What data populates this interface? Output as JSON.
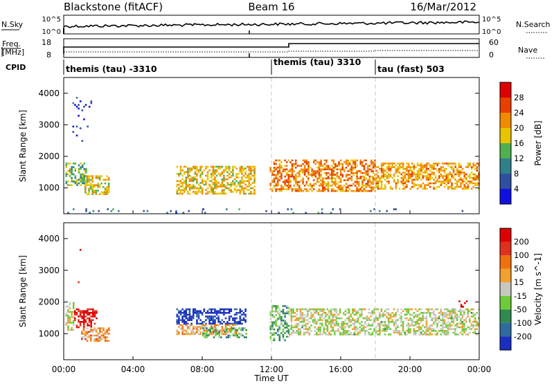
{
  "header": {
    "station": "Blackstone (fitACF)",
    "beam": "Beam 16",
    "date": "16/Mar/2012"
  },
  "noise_panel": {
    "left_label": "N.Sky",
    "left_top": "10^5",
    "left_bottom": "10^0",
    "right_label": "N.Search",
    "right_top": "10^5",
    "right_bottom": "10^0"
  },
  "freq_panel": {
    "left_label_1": "Freq.",
    "left_label_2": "[MHz]",
    "left_top": "18",
    "left_bottom": "8",
    "right_label": "Nave",
    "right_top": "60",
    "right_bottom": "0"
  },
  "cpid": {
    "label": "CPID",
    "segments": [
      {
        "start_hour": 0,
        "text": "themis (tau) -3310"
      },
      {
        "start_hour": 12,
        "text": "themis (tau) 3310"
      },
      {
        "start_hour": 18,
        "text": "tau (fast) 503"
      }
    ]
  },
  "time_axis": {
    "label": "Time UT",
    "ticks": [
      "00:00",
      "04:00",
      "08:00",
      "12:00",
      "16:00",
      "20:00",
      "00:00"
    ],
    "range_hours": [
      0,
      24
    ]
  },
  "chart_data": [
    {
      "type": "heatmap",
      "parameter": "Power",
      "ylabel": "Slant Range [km]",
      "yticks": [
        1000,
        2000,
        3000,
        4000
      ],
      "ylim": [
        180,
        4500
      ],
      "colorbar_label": "Power [dB]",
      "colorbar_ticks": [
        "4",
        "8",
        "12",
        "16",
        "20",
        "24",
        "28"
      ],
      "colors": [
        "#1010e0",
        "#2f4fa0",
        "#30808a",
        "#50b050",
        "#e8c400",
        "#f08a00",
        "#e84000",
        "#dd0000"
      ],
      "blobs": [
        {
          "t0": 0.1,
          "t1": 1.3,
          "r0": 1100,
          "r1": 1800,
          "level": 0.45
        },
        {
          "t0": 1.2,
          "t1": 2.6,
          "r0": 800,
          "r1": 1400,
          "level": 0.55
        },
        {
          "t0": 0.5,
          "t1": 1.6,
          "r0": 2500,
          "r1": 4000,
          "level": 0.15,
          "sparse": true
        },
        {
          "t0": 6.5,
          "t1": 11.0,
          "r0": 800,
          "r1": 1700,
          "level": 0.6
        },
        {
          "t0": 11.9,
          "t1": 18.0,
          "r0": 900,
          "r1": 1900,
          "level": 0.7
        },
        {
          "t0": 18.0,
          "t1": 24.0,
          "r0": 1000,
          "r1": 1800,
          "level": 0.65
        },
        {
          "t0": 0.0,
          "t1": 24.0,
          "r0": 200,
          "r1": 350,
          "level": 0.25,
          "sparse": true
        }
      ]
    },
    {
      "type": "heatmap",
      "parameter": "Velocity",
      "ylabel": "Slant Range [km]",
      "yticks": [
        1000,
        2000,
        3000,
        4000
      ],
      "ylim": [
        180,
        4500
      ],
      "colorbar_label": "Velocity [m s^-1]",
      "colorbar_ticks": [
        "200",
        "100",
        "50",
        "15",
        "-15",
        "-50",
        "-100",
        "-200"
      ],
      "colors": [
        "#1a2fc0",
        "#2f6aa0",
        "#2f8a50",
        "#6ecb3a",
        "#c8c8c0",
        "#f0a030",
        "#f07010",
        "#e03020",
        "#dd0000"
      ],
      "blobs": [
        {
          "t0": 0.1,
          "t1": 0.6,
          "r0": 1100,
          "r1": 2000,
          "level": 0.5
        },
        {
          "t0": 0.6,
          "t1": 1.9,
          "r0": 1200,
          "r1": 1800,
          "level": 0.95
        },
        {
          "t0": 1.0,
          "t1": 2.6,
          "r0": 800,
          "r1": 1200,
          "level": 0.65
        },
        {
          "t0": 0.5,
          "t1": 1.0,
          "r0": 2600,
          "r1": 3900,
          "level": 0.95,
          "sparse": true
        },
        {
          "t0": 6.5,
          "t1": 10.5,
          "r0": 1300,
          "r1": 1800,
          "level": 0.05
        },
        {
          "t0": 6.5,
          "t1": 10.0,
          "r0": 1000,
          "r1": 1300,
          "level": 0.62
        },
        {
          "t0": 8.0,
          "t1": 10.5,
          "r0": 900,
          "r1": 1200,
          "level": 0.35
        },
        {
          "t0": 11.9,
          "t1": 13.0,
          "r0": 800,
          "r1": 1900,
          "level": 0.35
        },
        {
          "t0": 13.0,
          "t1": 24.0,
          "r0": 1000,
          "r1": 1800,
          "level": 0.48
        },
        {
          "t0": 22.5,
          "t1": 23.5,
          "r0": 1850,
          "r1": 2050,
          "level": 0.95,
          "sparse": true
        }
      ]
    }
  ]
}
